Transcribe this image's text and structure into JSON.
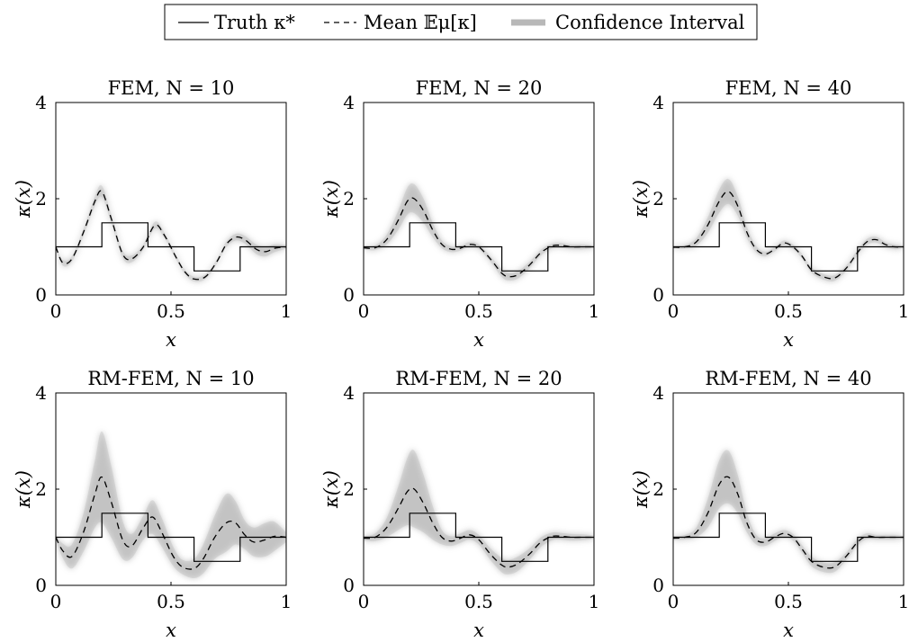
{
  "legend": {
    "truth_label": "Truth κ*",
    "mean_label": "Mean 𝔼μ[κ]",
    "ci_label": "Confidence Interval",
    "ci_color": "#b8b8b8"
  },
  "axis_text": {
    "xlabel": "x",
    "ylabel": "κ(x)",
    "xticks": [
      "0",
      "0.5",
      "1"
    ],
    "yticks": [
      "0",
      "2",
      "4"
    ]
  },
  "chart_data": [
    {
      "type": "line",
      "title": "FEM, N = 10",
      "xlabel": "x",
      "ylabel": "κ(x)",
      "xlim": [
        0,
        1
      ],
      "ylim": [
        0,
        4
      ],
      "truth": {
        "x": [
          0,
          0.2,
          0.2,
          0.4,
          0.4,
          0.6,
          0.6,
          0.8,
          0.8,
          1.0
        ],
        "y": [
          1,
          1,
          1.5,
          1.5,
          1,
          1,
          0.5,
          0.5,
          1,
          1
        ]
      },
      "mean": {
        "x": [
          0,
          0.03,
          0.07,
          0.12,
          0.17,
          0.2,
          0.24,
          0.29,
          0.33,
          0.38,
          0.43,
          0.47,
          0.52,
          0.56,
          0.6,
          0.65,
          0.7,
          0.74,
          0.78,
          0.82,
          0.87,
          0.91,
          0.95,
          1.0
        ],
        "y": [
          1.0,
          0.67,
          0.75,
          1.3,
          1.95,
          2.15,
          1.6,
          0.85,
          0.75,
          1.0,
          1.45,
          1.25,
          0.8,
          0.48,
          0.33,
          0.38,
          0.7,
          1.05,
          1.2,
          1.15,
          0.95,
          0.9,
          0.97,
          1.0
        ]
      },
      "band_halfwidth": [
        0.04,
        0.06,
        0.06,
        0.08,
        0.1,
        0.12,
        0.1,
        0.08,
        0.07,
        0.06,
        0.07,
        0.06,
        0.05,
        0.05,
        0.05,
        0.05,
        0.05,
        0.06,
        0.07,
        0.08,
        0.1,
        0.1,
        0.08,
        0.04
      ]
    },
    {
      "type": "line",
      "title": "FEM, N = 20",
      "xlabel": "x",
      "ylabel": "κ(x)",
      "xlim": [
        0,
        1
      ],
      "ylim": [
        0,
        4
      ],
      "truth": {
        "x": [
          0,
          0.2,
          0.2,
          0.4,
          0.4,
          0.6,
          0.6,
          0.8,
          0.8,
          1.0
        ],
        "y": [
          1,
          1,
          1.5,
          1.5,
          1,
          1,
          0.5,
          0.5,
          1,
          1
        ]
      },
      "mean": {
        "x": [
          0,
          0.05,
          0.1,
          0.15,
          0.19,
          0.22,
          0.26,
          0.3,
          0.34,
          0.38,
          0.42,
          0.46,
          0.5,
          0.55,
          0.6,
          0.63,
          0.67,
          0.72,
          0.77,
          0.82,
          0.86,
          0.9,
          0.95,
          1.0
        ],
        "y": [
          0.98,
          0.98,
          1.15,
          1.55,
          1.95,
          2.0,
          1.75,
          1.35,
          1.05,
          0.95,
          0.97,
          1.05,
          1.0,
          0.75,
          0.45,
          0.38,
          0.42,
          0.62,
          0.88,
          1.02,
          1.03,
          1.0,
          1.0,
          1.0
        ]
      },
      "band_halfwidth": [
        0.03,
        0.05,
        0.1,
        0.2,
        0.28,
        0.3,
        0.25,
        0.15,
        0.08,
        0.06,
        0.05,
        0.05,
        0.05,
        0.06,
        0.08,
        0.08,
        0.08,
        0.07,
        0.06,
        0.05,
        0.05,
        0.05,
        0.05,
        0.03
      ]
    },
    {
      "type": "line",
      "title": "FEM, N = 40",
      "xlabel": "x",
      "ylabel": "κ(x)",
      "xlim": [
        0,
        1
      ],
      "ylim": [
        0,
        4
      ],
      "truth": {
        "x": [
          0,
          0.2,
          0.2,
          0.4,
          0.4,
          0.6,
          0.6,
          0.8,
          0.8,
          1.0
        ],
        "y": [
          1,
          1,
          1.5,
          1.5,
          1,
          1,
          0.5,
          0.5,
          1,
          1
        ]
      },
      "mean": {
        "x": [
          0,
          0.05,
          0.1,
          0.15,
          0.2,
          0.24,
          0.28,
          0.32,
          0.36,
          0.4,
          0.44,
          0.48,
          0.52,
          0.56,
          0.6,
          0.65,
          0.7,
          0.75,
          0.8,
          0.84,
          0.88,
          0.92,
          0.96,
          1.0
        ],
        "y": [
          0.99,
          1.0,
          1.1,
          1.45,
          1.95,
          2.15,
          1.85,
          1.3,
          0.95,
          0.85,
          0.95,
          1.08,
          1.0,
          0.8,
          0.52,
          0.38,
          0.35,
          0.55,
          0.88,
          1.1,
          1.15,
          1.05,
          1.0,
          1.0
        ]
      },
      "band_halfwidth": [
        0.03,
        0.04,
        0.08,
        0.16,
        0.24,
        0.26,
        0.2,
        0.12,
        0.07,
        0.05,
        0.05,
        0.05,
        0.05,
        0.05,
        0.06,
        0.06,
        0.06,
        0.06,
        0.06,
        0.06,
        0.06,
        0.05,
        0.05,
        0.03
      ]
    },
    {
      "type": "line",
      "title": "RM-FEM, N = 10",
      "xlabel": "x",
      "ylabel": "κ(x)",
      "xlim": [
        0,
        1
      ],
      "ylim": [
        0,
        4
      ],
      "truth": {
        "x": [
          0,
          0.2,
          0.2,
          0.4,
          0.4,
          0.6,
          0.6,
          0.8,
          0.8,
          1.0
        ],
        "y": [
          1,
          1,
          1.5,
          1.5,
          1,
          1,
          0.5,
          0.5,
          1,
          1
        ]
      },
      "mean": {
        "x": [
          0,
          0.03,
          0.07,
          0.12,
          0.17,
          0.2,
          0.24,
          0.29,
          0.33,
          0.38,
          0.42,
          0.46,
          0.51,
          0.55,
          0.6,
          0.64,
          0.69,
          0.74,
          0.78,
          0.82,
          0.86,
          0.91,
          0.95,
          1.0
        ],
        "y": [
          1.0,
          0.72,
          0.6,
          1.1,
          1.9,
          2.25,
          1.75,
          0.95,
          0.82,
          1.2,
          1.42,
          1.1,
          0.6,
          0.38,
          0.35,
          0.55,
          1.0,
          1.3,
          1.3,
          1.05,
          0.9,
          0.95,
          1.02,
          1.0
        ]
      },
      "band_halfwidth": [
        0.05,
        0.15,
        0.25,
        0.4,
        0.7,
        0.95,
        0.75,
        0.4,
        0.25,
        0.25,
        0.35,
        0.3,
        0.2,
        0.15,
        0.2,
        0.3,
        0.45,
        0.6,
        0.45,
        0.3,
        0.3,
        0.35,
        0.3,
        0.1
      ]
    },
    {
      "type": "line",
      "title": "RM-FEM, N = 20",
      "xlabel": "x",
      "ylabel": "κ(x)",
      "xlim": [
        0,
        1
      ],
      "ylim": [
        0,
        4
      ],
      "truth": {
        "x": [
          0,
          0.2,
          0.2,
          0.4,
          0.4,
          0.6,
          0.6,
          0.8,
          0.8,
          1.0
        ],
        "y": [
          1,
          1,
          1.5,
          1.5,
          1,
          1,
          0.5,
          0.5,
          1,
          1
        ]
      },
      "mean": {
        "x": [
          0,
          0.05,
          0.1,
          0.15,
          0.19,
          0.22,
          0.26,
          0.3,
          0.34,
          0.38,
          0.42,
          0.46,
          0.5,
          0.55,
          0.6,
          0.63,
          0.67,
          0.72,
          0.77,
          0.82,
          0.86,
          0.9,
          0.95,
          1.0
        ],
        "y": [
          0.98,
          1.0,
          1.2,
          1.6,
          1.95,
          2.0,
          1.7,
          1.3,
          1.0,
          0.92,
          0.98,
          1.05,
          0.95,
          0.65,
          0.42,
          0.38,
          0.45,
          0.65,
          0.9,
          1.02,
          1.02,
          1.0,
          1.0,
          1.0
        ]
      },
      "band_halfwidth": [
        0.05,
        0.08,
        0.2,
        0.45,
        0.7,
        0.8,
        0.6,
        0.35,
        0.15,
        0.1,
        0.1,
        0.1,
        0.1,
        0.12,
        0.15,
        0.15,
        0.15,
        0.12,
        0.1,
        0.08,
        0.07,
        0.07,
        0.06,
        0.04
      ]
    },
    {
      "type": "line",
      "title": "RM-FEM, N = 40",
      "xlabel": "x",
      "ylabel": "κ(x)",
      "xlim": [
        0,
        1
      ],
      "ylim": [
        0,
        4
      ],
      "truth": {
        "x": [
          0,
          0.2,
          0.2,
          0.4,
          0.4,
          0.6,
          0.6,
          0.8,
          0.8,
          1.0
        ],
        "y": [
          1,
          1,
          1.5,
          1.5,
          1,
          1,
          0.5,
          0.5,
          1,
          1
        ]
      },
      "mean": {
        "x": [
          0,
          0.05,
          0.1,
          0.15,
          0.2,
          0.24,
          0.28,
          0.32,
          0.36,
          0.4,
          0.44,
          0.48,
          0.52,
          0.56,
          0.6,
          0.65,
          0.7,
          0.75,
          0.8,
          0.84,
          0.88,
          0.92,
          0.96,
          1.0
        ],
        "y": [
          0.98,
          1.0,
          1.1,
          1.5,
          2.1,
          2.25,
          1.9,
          1.3,
          0.95,
          0.9,
          1.0,
          1.08,
          1.0,
          0.75,
          0.5,
          0.38,
          0.38,
          0.6,
          0.9,
          1.02,
          1.0,
          1.0,
          1.0,
          1.0
        ]
      },
      "band_halfwidth": [
        0.04,
        0.05,
        0.1,
        0.3,
        0.5,
        0.55,
        0.4,
        0.2,
        0.1,
        0.08,
        0.08,
        0.07,
        0.07,
        0.08,
        0.1,
        0.1,
        0.1,
        0.08,
        0.07,
        0.06,
        0.05,
        0.05,
        0.05,
        0.03
      ]
    }
  ]
}
